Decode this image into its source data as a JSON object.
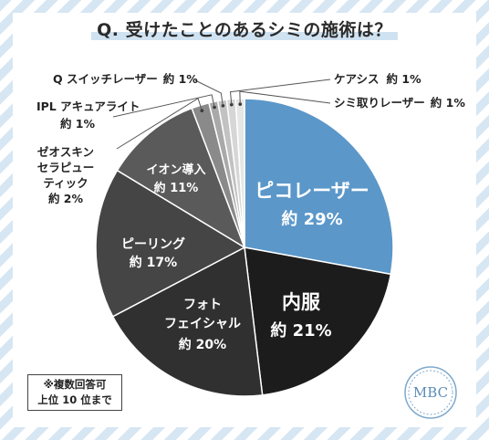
{
  "title": "Q. 受けたことのあるシミの施術は？",
  "note": {
    "line1": "※複数回答可",
    "line2": "上位 10 位まで"
  },
  "logo": {
    "text": "MBC"
  },
  "colors": {
    "highlight": "#5b97c9",
    "dark1": "#1c1c1c",
    "dark2": "#303030",
    "dark3": "#454545",
    "dark4": "#5a5a5a",
    "light1": "#8a8a8a",
    "light2": "#a9a9a9",
    "light3": "#c2c2c2",
    "light4": "#d6d6d6",
    "light5": "#e6e6e6",
    "light6": "#f0f0f0"
  },
  "chart_data": {
    "type": "pie",
    "title": "Q. 受けたことのあるシミの施術は？",
    "slices": [
      {
        "name": "ピコレーザー",
        "value": 29,
        "label": "約 29%"
      },
      {
        "name": "内服",
        "value": 21,
        "label": "約 21%"
      },
      {
        "name": "フォトフェイシャル",
        "value": 20,
        "label": "約 20%"
      },
      {
        "name": "ピーリング",
        "value": 17,
        "label": "約 17%"
      },
      {
        "name": "イオン導入",
        "value": 11,
        "label": "約 11%"
      },
      {
        "name": "ゼオスキンセラピューティック",
        "value": 2,
        "label": "約 2%"
      },
      {
        "name": "IPL アキュアライト",
        "value": 1,
        "label": "約 1%"
      },
      {
        "name": "Q スイッチレーザー",
        "value": 1,
        "label": "約 1%"
      },
      {
        "name": "ケアシス",
        "value": 1,
        "label": "約 1%"
      },
      {
        "name": "シミ取りレーザー",
        "value": 1,
        "label": "約 1%"
      }
    ]
  }
}
